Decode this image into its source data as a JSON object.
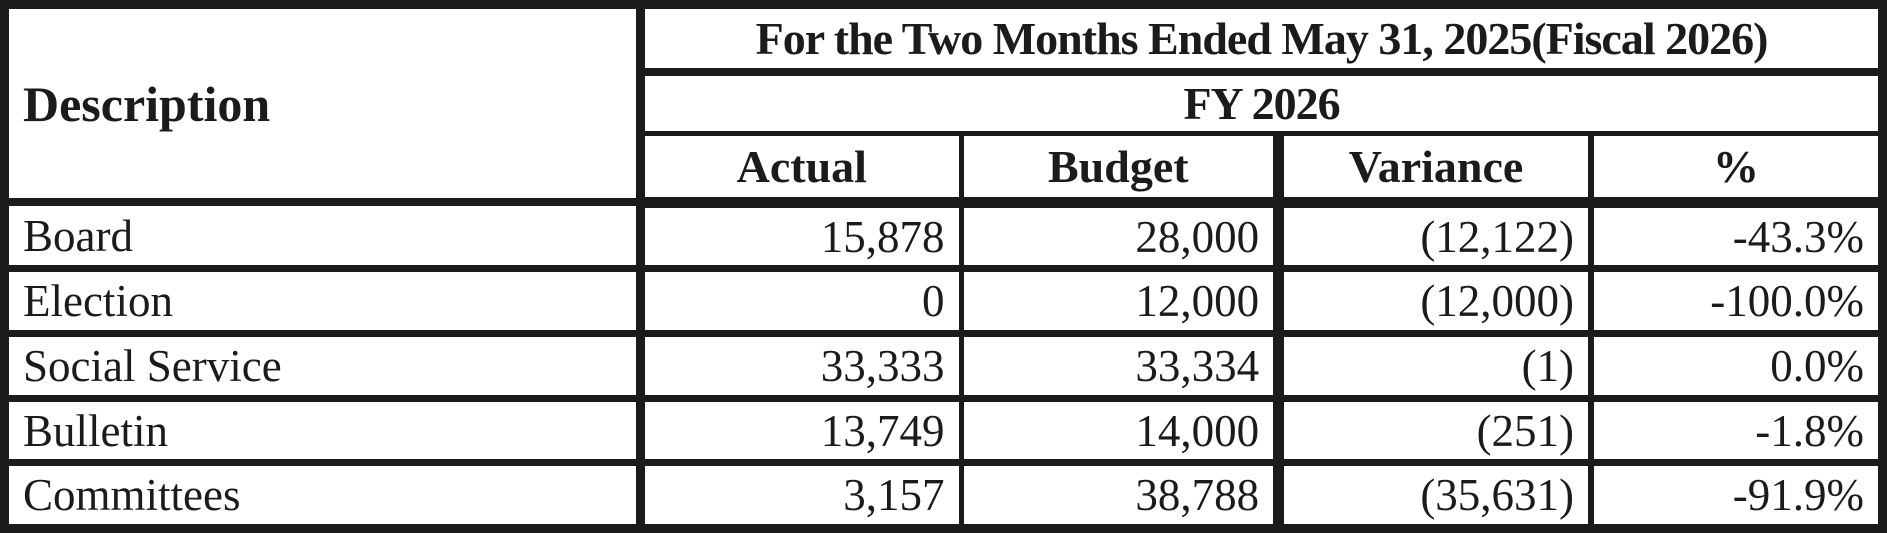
{
  "table": {
    "header": {
      "description_label": "Description",
      "period_title": "For the Two Months Ended May 31, 2025(Fiscal 2026)",
      "fiscal_year": "FY 2026",
      "columns": [
        "Actual",
        "Budget",
        "Variance",
        "%"
      ]
    },
    "rows": [
      {
        "description": "Board",
        "actual": "15,878",
        "budget": "28,000",
        "variance": "(12,122)",
        "percent": "-43.3%"
      },
      {
        "description": "Election",
        "actual": "0",
        "budget": "12,000",
        "variance": "(12,000)",
        "percent": "-100.0%"
      },
      {
        "description": "Social Service",
        "actual": "33,333",
        "budget": "33,334",
        "variance": "(1)",
        "percent": "0.0%"
      },
      {
        "description": "Bulletin",
        "actual": "13,749",
        "budget": "14,000",
        "variance": "(251)",
        "percent": "-1.8%"
      },
      {
        "description": "Committees",
        "actual": "3,157",
        "budget": "38,788",
        "variance": "(35,631)",
        "percent": "-91.9%"
      }
    ],
    "colors": {
      "border": "#1b1b1b",
      "text": "#1b1b1b",
      "background": "#ffffff"
    }
  }
}
